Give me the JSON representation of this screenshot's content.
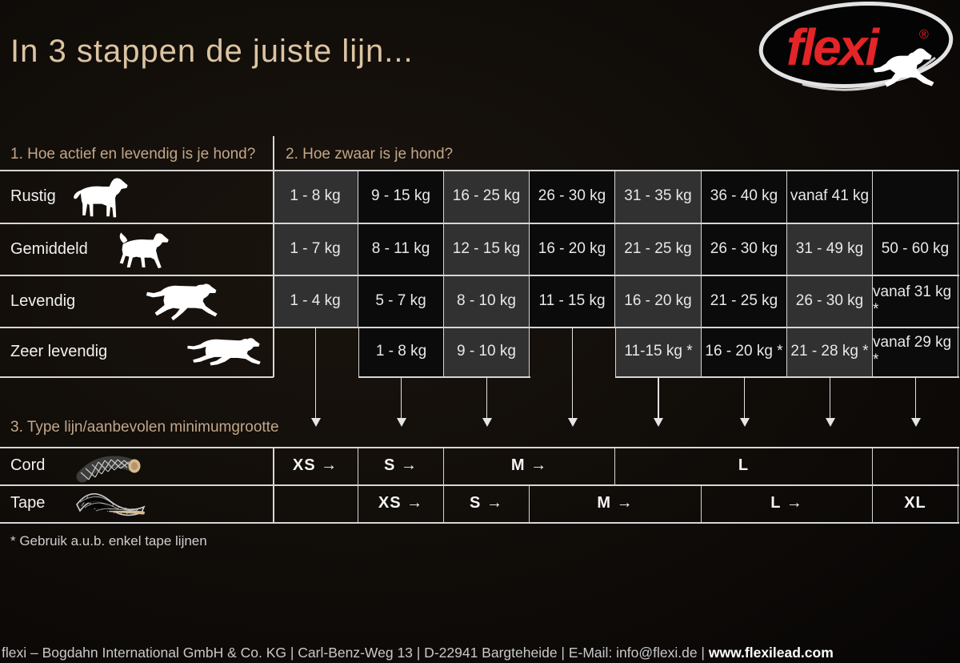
{
  "title": "In 3 stappen de juiste lijn...",
  "logo": {
    "brand": "flexi",
    "registered": "®"
  },
  "sections": {
    "s1": "1. Hoe actief en levendig is je hond?",
    "s2": "2. Hoe zwaar is je hond?",
    "s3": "3. Type lijn/aanbevolen minimumgrootte"
  },
  "weight_table": {
    "rows": [
      {
        "label": "Rustig",
        "dog_icon": "standing-dog",
        "cells": [
          {
            "col": 1,
            "text": "1 - 8 kg",
            "shade": "gray"
          },
          {
            "col": 2,
            "text": "9 - 15 kg",
            "shade": "black"
          },
          {
            "col": 3,
            "text": "16 - 25 kg",
            "shade": "gray"
          },
          {
            "col": 4,
            "text": "26 - 30 kg",
            "shade": "black"
          },
          {
            "col": 5,
            "text": "31 - 35 kg",
            "shade": "gray"
          },
          {
            "col": 6,
            "text": "36 - 40 kg",
            "shade": "black"
          },
          {
            "col": 7,
            "text": "vanaf 41 kg",
            "shade": "black"
          },
          {
            "col": 8,
            "text": "",
            "shade": "black"
          }
        ]
      },
      {
        "label": "Gemiddeld",
        "dog_icon": "trotting-dog",
        "cells": [
          {
            "col": 1,
            "text": "1 - 7 kg",
            "shade": "gray"
          },
          {
            "col": 2,
            "text": "8 - 11 kg",
            "shade": "black"
          },
          {
            "col": 3,
            "text": "12 - 15 kg",
            "shade": "gray"
          },
          {
            "col": 4,
            "text": "16 - 20 kg",
            "shade": "black"
          },
          {
            "col": 5,
            "text": "21 - 25 kg",
            "shade": "gray"
          },
          {
            "col": 6,
            "text": "26 - 30 kg",
            "shade": "black"
          },
          {
            "col": 7,
            "text": "31 - 49 kg",
            "shade": "gray"
          },
          {
            "col": 8,
            "text": "50 - 60 kg",
            "shade": "black"
          }
        ]
      },
      {
        "label": "Levendig",
        "dog_icon": "running-dog",
        "cells": [
          {
            "col": 1,
            "text": "1 - 4 kg",
            "shade": "gray"
          },
          {
            "col": 2,
            "text": "5 - 7 kg",
            "shade": "black"
          },
          {
            "col": 3,
            "text": "8 - 10 kg",
            "shade": "gray"
          },
          {
            "col": 4,
            "text": "11 - 15 kg",
            "shade": "black"
          },
          {
            "col": 5,
            "text": "16 - 20 kg",
            "shade": "gray"
          },
          {
            "col": 6,
            "text": "21 - 25 kg",
            "shade": "black"
          },
          {
            "col": 7,
            "text": "26 - 30 kg",
            "shade": "gray"
          },
          {
            "col": 8,
            "text": "vanaf 31 kg *",
            "shade": "black"
          }
        ]
      },
      {
        "label": "Zeer levendig",
        "dog_icon": "sprinting-dog",
        "cells": [
          {
            "col": 2,
            "text": "1 - 8 kg",
            "shade": "black"
          },
          {
            "col": 3,
            "text": "9 - 10 kg",
            "shade": "gray"
          },
          {
            "col": 5,
            "text": "11-15 kg *",
            "shade": "gray"
          },
          {
            "col": 6,
            "text": "16 - 20 kg *",
            "shade": "black"
          },
          {
            "col": 7,
            "text": "21 - 28 kg *",
            "shade": "gray"
          },
          {
            "col": 8,
            "text": "vanaf 29 kg *",
            "shade": "black"
          }
        ]
      }
    ]
  },
  "arrows": [
    {
      "column": 1,
      "tall": true
    },
    {
      "column": 2,
      "tall": false
    },
    {
      "column": 3,
      "tall": false
    },
    {
      "column": 4,
      "tall": true
    },
    {
      "column": 5,
      "tall": false
    },
    {
      "column": 6,
      "tall": false
    },
    {
      "column": 7,
      "tall": false
    },
    {
      "column": 8,
      "tall": false
    }
  ],
  "size_table": {
    "rows": [
      {
        "label": "Cord",
        "icon": "cord-leash",
        "cells": [
          {
            "from": 1,
            "to": 1,
            "label": "XS →"
          },
          {
            "from": 2,
            "to": 2,
            "label": "S →"
          },
          {
            "from": 3,
            "to": 4,
            "label": "M →"
          },
          {
            "from": 5,
            "to": 7,
            "label": "L"
          },
          {
            "from": 8,
            "to": 8,
            "label": ""
          }
        ]
      },
      {
        "label": "Tape",
        "icon": "tape-leash",
        "cells": [
          {
            "from": 1,
            "to": 1,
            "label": ""
          },
          {
            "from": 2,
            "to": 2,
            "label": "XS →"
          },
          {
            "from": 3,
            "to": 3,
            "label": "S →"
          },
          {
            "from": 4,
            "to": 5,
            "label": "M →"
          },
          {
            "from": 6,
            "to": 7,
            "label": "L →"
          },
          {
            "from": 8,
            "to": 8,
            "label": "XL"
          }
        ]
      }
    ]
  },
  "footnote": "* Gebruik a.u.b. enkel tape lijnen",
  "footer": {
    "company": "flexi – Bogdahn International GmbH & Co. KG | Carl-Benz-Weg 13 | D-22941 Bargteheide | E-Mail: info@flexi.de | ",
    "website": "www.flexilead.com"
  },
  "colors": {
    "accent_tan": "#dcc4a2",
    "header_tan": "#c2a78a",
    "logo_red": "#e32528",
    "cell_gray": "#323132",
    "cell_black": "#0b0b0b",
    "table_line": "#d6d6d6"
  },
  "chart_data": {
    "type": "table",
    "title": "In 3 stappen de juiste lijn...",
    "step1_label": "1. Hoe actief en levendig is je hond?",
    "step2_label": "2. Hoe zwaar is je hond?",
    "step3_label": "3. Type lijn/aanbevolen minimumgrootte",
    "weight_columns": [
      1,
      2,
      3,
      4,
      5,
      6,
      7,
      8
    ],
    "activity_rows": [
      {
        "activity": "Rustig",
        "weights": [
          "1 - 8 kg",
          "9 - 15 kg",
          "16 - 25 kg",
          "26 - 30 kg",
          "31 - 35 kg",
          "36 - 40 kg",
          "vanaf 41 kg",
          null
        ]
      },
      {
        "activity": "Gemiddeld",
        "weights": [
          "1 - 7 kg",
          "8 - 11 kg",
          "12 - 15 kg",
          "16 - 20 kg",
          "21 - 25 kg",
          "26 - 30 kg",
          "31 - 49 kg",
          "50 - 60 kg"
        ]
      },
      {
        "activity": "Levendig",
        "weights": [
          "1 - 4 kg",
          "5 - 7 kg",
          "8 - 10 kg",
          "11 - 15 kg",
          "16 - 20 kg",
          "21 - 25 kg",
          "26 - 30 kg",
          "vanaf 31 kg *"
        ]
      },
      {
        "activity": "Zeer levendig",
        "weights": [
          null,
          "1 - 8 kg",
          "9 - 10 kg",
          null,
          "11-15 kg *",
          "16 - 20 kg *",
          "21 - 28 kg *",
          "vanaf 29 kg *"
        ]
      }
    ],
    "size_rows": [
      {
        "type": "Cord",
        "sizes": [
          {
            "columns": "1",
            "size": "XS"
          },
          {
            "columns": "2",
            "size": "S"
          },
          {
            "columns": "3-4",
            "size": "M"
          },
          {
            "columns": "5-7",
            "size": "L"
          }
        ]
      },
      {
        "type": "Tape",
        "sizes": [
          {
            "columns": "2",
            "size": "XS"
          },
          {
            "columns": "3",
            "size": "S"
          },
          {
            "columns": "4-5",
            "size": "M"
          },
          {
            "columns": "6-7",
            "size": "L"
          },
          {
            "columns": "8",
            "size": "XL"
          }
        ]
      }
    ],
    "footnote": "* Gebruik a.u.b. enkel tape lijnen"
  }
}
